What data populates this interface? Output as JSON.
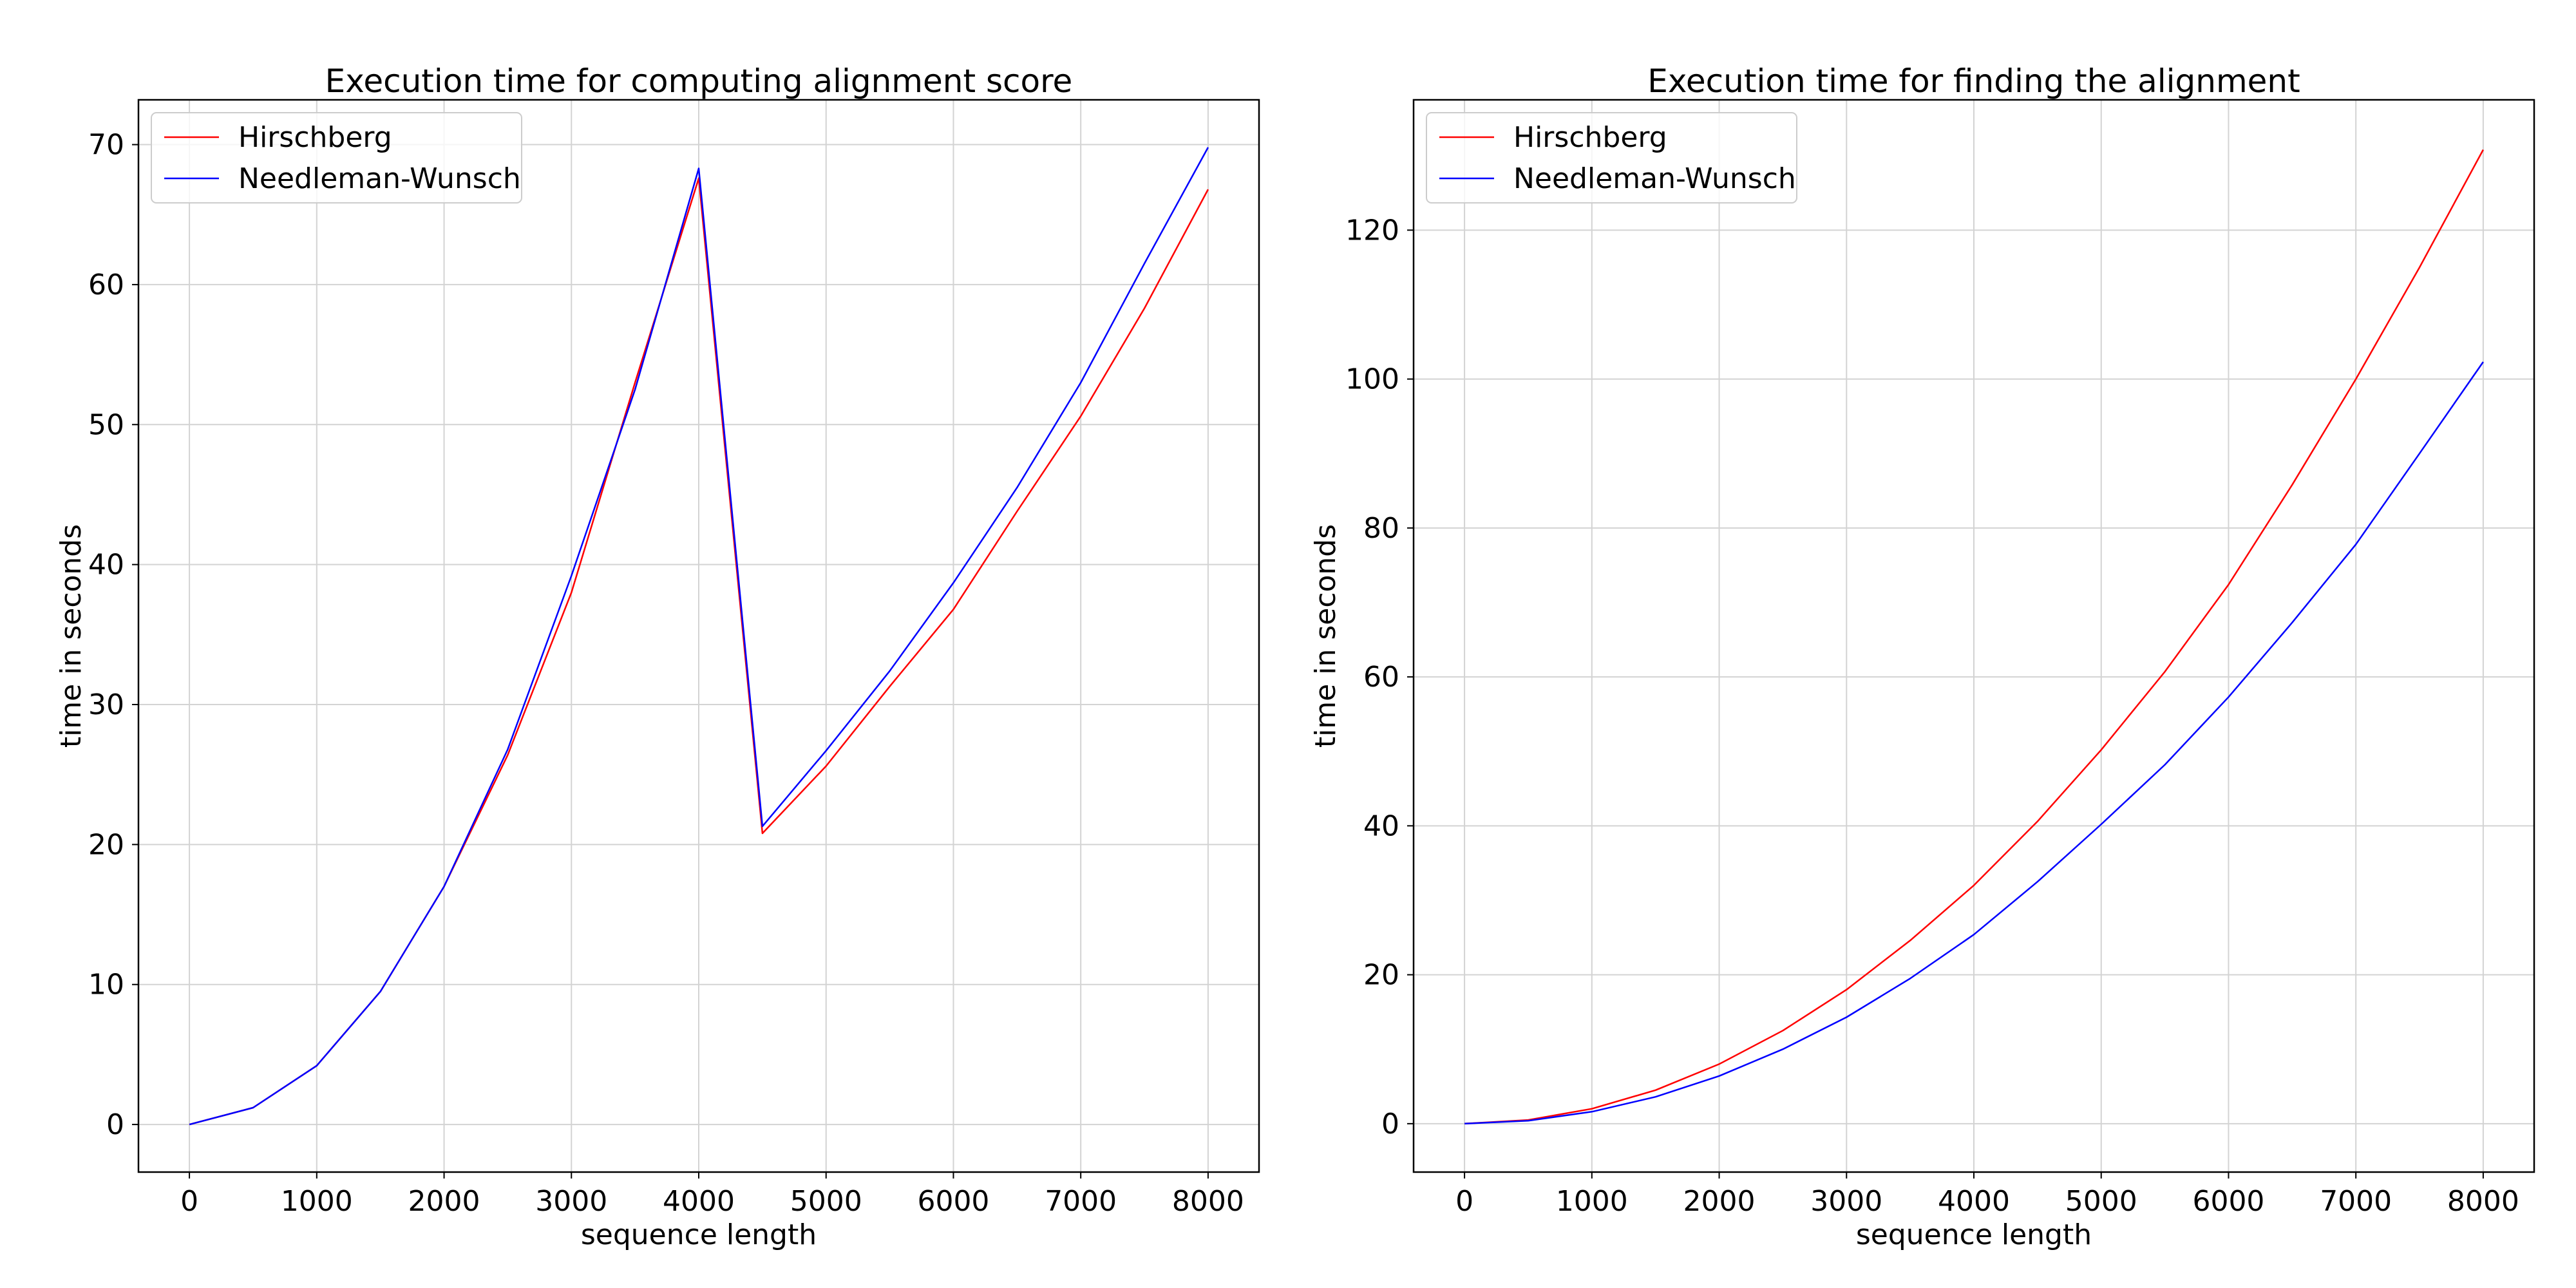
{
  "colors": {
    "hirschberg": "#ff0000",
    "needleman_wunsch": "#0000ff",
    "grid": "#d3d3d3",
    "axes": "#000000"
  },
  "chart_data": [
    {
      "type": "line",
      "title": "Execution time for computing alignment score",
      "xlabel": "sequence length",
      "ylabel": "time in seconds",
      "x": [
        0,
        500,
        1000,
        1500,
        2000,
        2500,
        3000,
        3500,
        4000,
        4500,
        5000,
        5500,
        6000,
        6500,
        7000,
        7500,
        8000
      ],
      "xlim": [
        -400,
        8400
      ],
      "ylim": [
        -3.4,
        73.2
      ],
      "xticks": [
        0,
        1000,
        2000,
        3000,
        4000,
        5000,
        6000,
        7000,
        8000
      ],
      "yticks": [
        0,
        10,
        20,
        30,
        40,
        50,
        60,
        70
      ],
      "grid": true,
      "legend": "upper left",
      "series": [
        {
          "name": "Hirschberg",
          "color": "#ff0000",
          "values": [
            0,
            1.2,
            4.2,
            9.5,
            17.0,
            26.4,
            38.0,
            53.0,
            67.6,
            20.8,
            25.6,
            31.3,
            36.8,
            43.8,
            50.6,
            58.3,
            66.8
          ]
        },
        {
          "name": "Needleman-Wunsch",
          "color": "#0000ff",
          "values": [
            0,
            1.2,
            4.2,
            9.5,
            17.0,
            26.8,
            39.2,
            52.5,
            68.3,
            21.3,
            26.7,
            32.4,
            38.7,
            45.5,
            53.0,
            61.5,
            69.8
          ]
        }
      ]
    },
    {
      "type": "line",
      "title": "Execution time for finding the alignment",
      "xlabel": "sequence length",
      "ylabel": "time in seconds",
      "x": [
        0,
        500,
        1000,
        1500,
        2000,
        2500,
        3000,
        3500,
        4000,
        4500,
        5000,
        5500,
        6000,
        6500,
        7000,
        7500,
        8000
      ],
      "xlim": [
        -400,
        8400
      ],
      "ylim": [
        -6.5,
        137.5
      ],
      "xticks": [
        0,
        1000,
        2000,
        3000,
        4000,
        5000,
        6000,
        7000,
        8000
      ],
      "yticks": [
        0,
        20,
        40,
        60,
        80,
        100,
        120
      ],
      "grid": true,
      "legend": "upper left",
      "series": [
        {
          "name": "Hirschberg",
          "color": "#ff0000",
          "values": [
            0,
            0.5,
            2.0,
            4.5,
            8.0,
            12.5,
            18.0,
            24.6,
            32.0,
            40.6,
            50.2,
            60.7,
            72.4,
            85.8,
            100.0,
            115.0,
            130.8
          ]
        },
        {
          "name": "Needleman-Wunsch",
          "color": "#0000ff",
          "values": [
            0,
            0.4,
            1.6,
            3.6,
            6.4,
            10.0,
            14.3,
            19.5,
            25.4,
            32.5,
            40.2,
            48.2,
            57.3,
            67.3,
            77.8,
            90.0,
            102.3
          ]
        }
      ]
    }
  ]
}
